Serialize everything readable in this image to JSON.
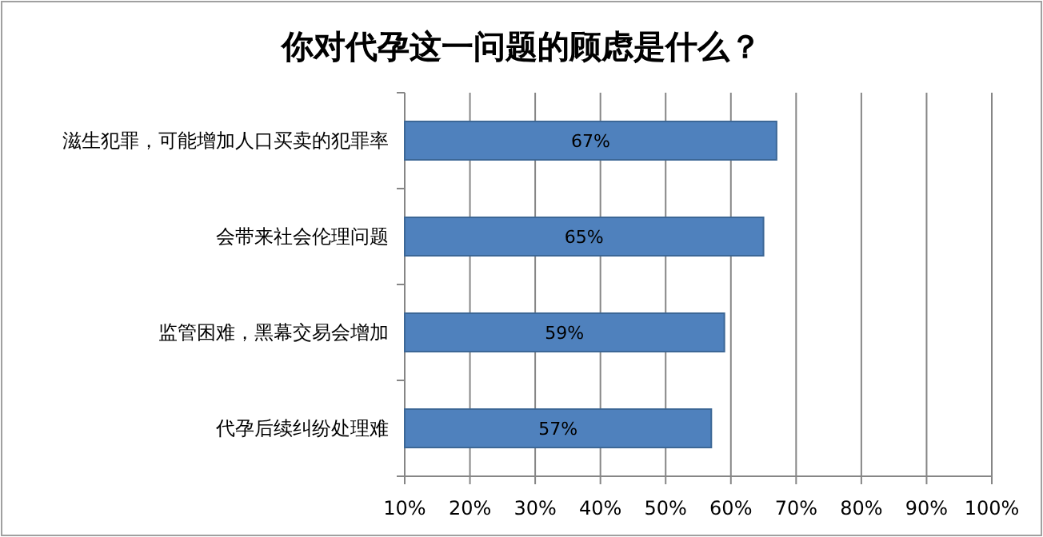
{
  "chart_data": {
    "type": "bar",
    "orientation": "horizontal",
    "title": "你对代孕这一问题的顾虑是什么？",
    "categories": [
      "滋生犯罪，可能增加人口买卖的犯罪率",
      "会带来社会伦理问题",
      "监管困难，黑幕交易会增加",
      "代孕后续纠纷处理难"
    ],
    "values": [
      67,
      65,
      59,
      57
    ],
    "value_labels": [
      "67%",
      "65%",
      "59%",
      "57%"
    ],
    "color": "#4f81bd",
    "xlim": [
      10,
      100
    ],
    "xticks": [
      {
        "value": 10,
        "label": "10%"
      },
      {
        "value": 20,
        "label": "20%"
      },
      {
        "value": 30,
        "label": "30%"
      },
      {
        "value": 40,
        "label": "40%"
      },
      {
        "value": 50,
        "label": "50%"
      },
      {
        "value": 60,
        "label": "60%"
      },
      {
        "value": 70,
        "label": "70%"
      },
      {
        "value": 80,
        "label": "80%"
      },
      {
        "value": 90,
        "label": "90%"
      },
      {
        "value": 100,
        "label": "100%"
      }
    ],
    "grid": "x"
  }
}
